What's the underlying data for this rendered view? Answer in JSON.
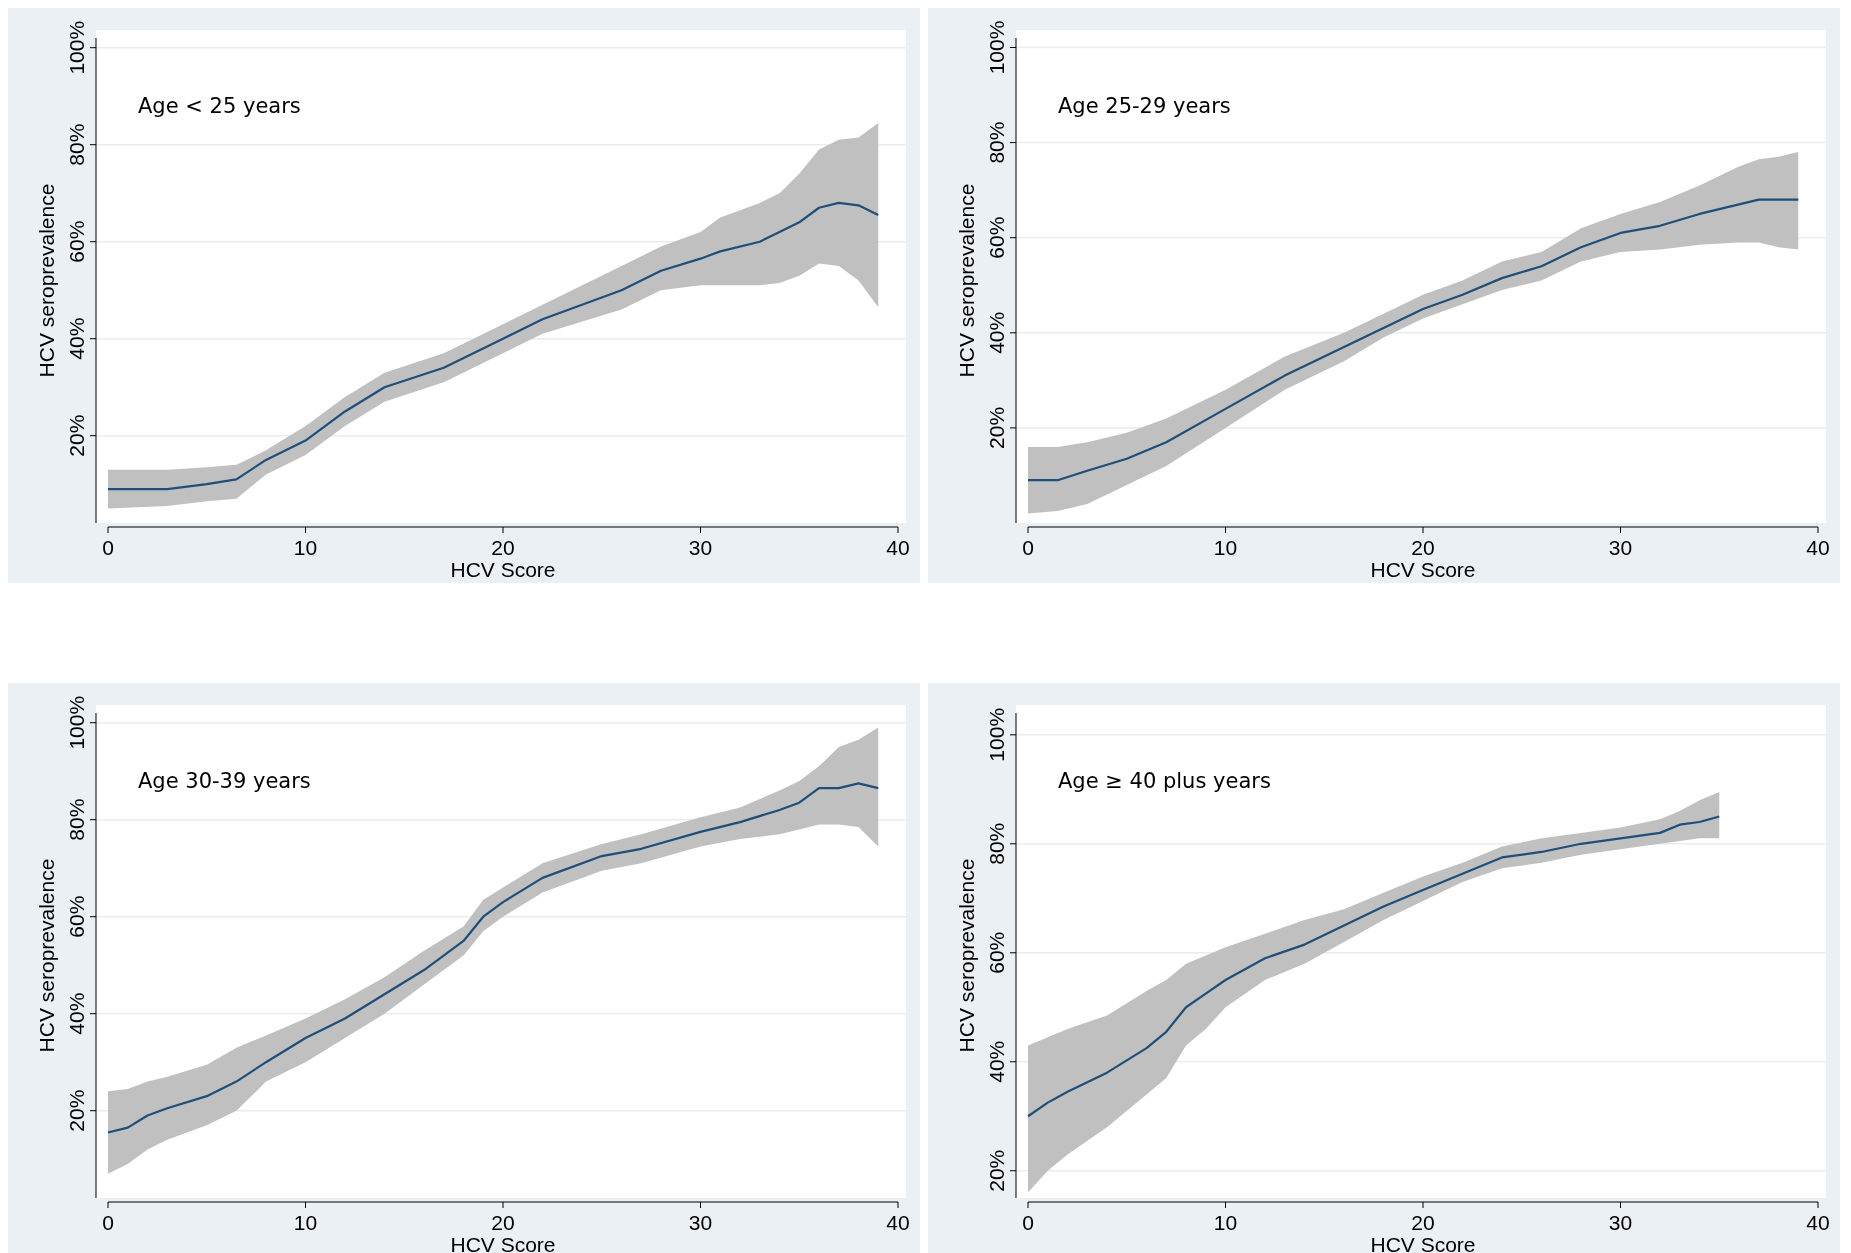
{
  "chart_data": [
    {
      "type": "line",
      "annotations": [
        "Age < 25 years"
      ],
      "xlabel": "HCV Score",
      "ylabel": "HCV seroprevalence",
      "xlim": [
        0,
        40
      ],
      "xticks": [
        0,
        10,
        20,
        30,
        40
      ],
      "ylim": [
        2,
        102
      ],
      "yticks": [
        {
          "value": 20,
          "label": "20%"
        },
        {
          "value": 40,
          "label": "40%"
        },
        {
          "value": 60,
          "label": "60%"
        },
        {
          "value": 80,
          "label": "80%"
        },
        {
          "value": 100,
          "label": "100%"
        }
      ],
      "grid": "y",
      "marker": "none",
      "line_style": "solid",
      "series": [
        {
          "color": "#1f4e79",
          "x": [
            0,
            3,
            5,
            6.5,
            8,
            10,
            12,
            14,
            17,
            20,
            22,
            26,
            28,
            30,
            31,
            33,
            34,
            35,
            36,
            37,
            38,
            39
          ],
          "values": [
            9,
            9,
            10,
            11,
            15,
            19,
            25,
            30,
            34,
            40,
            44,
            50,
            54,
            56.5,
            58,
            60,
            62,
            64,
            67,
            68,
            67.5,
            65.5
          ],
          "lower": [
            5,
            5.5,
            6.5,
            7,
            12,
            16,
            22,
            27,
            31,
            37,
            41,
            46,
            50,
            51,
            51,
            51,
            51.5,
            53,
            55.5,
            55,
            52,
            46.5
          ],
          "upper": [
            13,
            13,
            13.5,
            14,
            17,
            22,
            28,
            33,
            37,
            43,
            47,
            55,
            59,
            62,
            65,
            68,
            70,
            74,
            79,
            81,
            81.5,
            84.5
          ]
        }
      ]
    },
    {
      "type": "line",
      "annotations": [
        "Age 25-29 years"
      ],
      "xlabel": "HCV Score",
      "ylabel": "HCV seroprevalence",
      "xlim": [
        0,
        40
      ],
      "xticks": [
        0,
        10,
        20,
        30,
        40
      ],
      "ylim": [
        0,
        102
      ],
      "yticks": [
        {
          "value": 20,
          "label": "20%"
        },
        {
          "value": 40,
          "label": "40%"
        },
        {
          "value": 60,
          "label": "60%"
        },
        {
          "value": 80,
          "label": "80%"
        },
        {
          "value": 100,
          "label": "100%"
        }
      ],
      "grid": "y",
      "marker": "none",
      "line_style": "solid",
      "series": [
        {
          "color": "#1f4e79",
          "x": [
            0,
            1.5,
            3,
            5,
            7,
            10,
            13,
            16,
            18,
            20,
            22,
            24,
            26,
            28,
            30,
            32,
            34,
            36,
            37,
            38,
            39
          ],
          "values": [
            9,
            9,
            11,
            13.5,
            17,
            24,
            31,
            37,
            41,
            45,
            48,
            51.5,
            54,
            58,
            61,
            62.5,
            65,
            67,
            68,
            68,
            68
          ],
          "lower": [
            2,
            2.5,
            4,
            8,
            12,
            20,
            28,
            34,
            39,
            43,
            46,
            49,
            51,
            55,
            57,
            57.5,
            58.5,
            59,
            59,
            58,
            57.5
          ],
          "upper": [
            16,
            16,
            17,
            19,
            22,
            28,
            35,
            40,
            44,
            48,
            51,
            55,
            57,
            62,
            65,
            67.5,
            71,
            75,
            76.5,
            77,
            78
          ]
        }
      ]
    },
    {
      "type": "line",
      "annotations": [
        "Age 30-39 years"
      ],
      "xlabel": "HCV Score",
      "ylabel": "HCV seroprevalence",
      "xlim": [
        0,
        40
      ],
      "xticks": [
        0,
        10,
        20,
        30,
        40
      ],
      "ylim": [
        2,
        102
      ],
      "yticks": [
        {
          "value": 20,
          "label": "20%"
        },
        {
          "value": 40,
          "label": "40%"
        },
        {
          "value": 60,
          "label": "60%"
        },
        {
          "value": 80,
          "label": "80%"
        },
        {
          "value": 100,
          "label": "100%"
        }
      ],
      "grid": "y",
      "marker": "none",
      "line_style": "solid",
      "series": [
        {
          "color": "#1f4e79",
          "x": [
            0,
            1,
            2,
            3,
            5,
            6.5,
            8,
            10,
            12,
            14,
            16,
            18,
            19,
            20,
            22,
            25,
            27,
            30,
            32,
            34,
            35,
            36,
            37,
            38,
            39
          ],
          "values": [
            15.5,
            16.5,
            19,
            20.5,
            23,
            26,
            30,
            35,
            39,
            44,
            49,
            55,
            60,
            63,
            68,
            72.5,
            74,
            77.5,
            79.5,
            82,
            83.5,
            86.5,
            86.5,
            87.5,
            86.5
          ],
          "lower": [
            7,
            9,
            12,
            14,
            17,
            20,
            26,
            30,
            35,
            40,
            46,
            52,
            57,
            60,
            65,
            69.5,
            71,
            74.5,
            76,
            77,
            78,
            79,
            79,
            78.5,
            74.5
          ],
          "upper": [
            24,
            24.5,
            26,
            27,
            29.5,
            33,
            35.5,
            39,
            43,
            47.5,
            53,
            58,
            63.5,
            66,
            71,
            75,
            77,
            80.5,
            82.5,
            86,
            88,
            91,
            95,
            96.5,
            99
          ]
        }
      ]
    },
    {
      "type": "line",
      "annotations": [
        "Age ≥ 40 plus years"
      ],
      "xlabel": "HCV Score",
      "ylabel": "HCV seroprevalence",
      "xlim": [
        0,
        40
      ],
      "xticks": [
        0,
        10,
        20,
        30,
        40
      ],
      "ylim": [
        15,
        104
      ],
      "yticks": [
        {
          "value": 20,
          "label": "20%"
        },
        {
          "value": 40,
          "label": "40%"
        },
        {
          "value": 60,
          "label": "60%"
        },
        {
          "value": 80,
          "label": "80%"
        },
        {
          "value": 100,
          "label": "100%"
        }
      ],
      "grid": "y",
      "marker": "none",
      "line_style": "solid",
      "series": [
        {
          "color": "#1f4e79",
          "x": [
            0,
            1,
            2,
            4,
            6,
            7,
            8,
            9,
            10,
            12,
            14,
            16,
            18,
            20,
            22,
            24,
            26,
            28,
            30,
            32,
            33,
            34,
            35
          ],
          "values": [
            30,
            32.5,
            34.5,
            38,
            42.5,
            45.5,
            50,
            52.5,
            55,
            59,
            61.5,
            65,
            68.5,
            71.5,
            74.5,
            77.5,
            78.5,
            80,
            81,
            82,
            83.5,
            84,
            85
          ],
          "lower": [
            16,
            20,
            23,
            28,
            34,
            37,
            43,
            46,
            50,
            55,
            58,
            62,
            66,
            69.5,
            73,
            75.5,
            76.5,
            78,
            79,
            80,
            80.5,
            81,
            81
          ],
          "upper": [
            43,
            44.5,
            46,
            48.5,
            53,
            55,
            58,
            59.5,
            61,
            63.5,
            66,
            68,
            71,
            74,
            76.5,
            79.5,
            81,
            82,
            83,
            84.5,
            86,
            88,
            89.5
          ]
        }
      ]
    }
  ]
}
